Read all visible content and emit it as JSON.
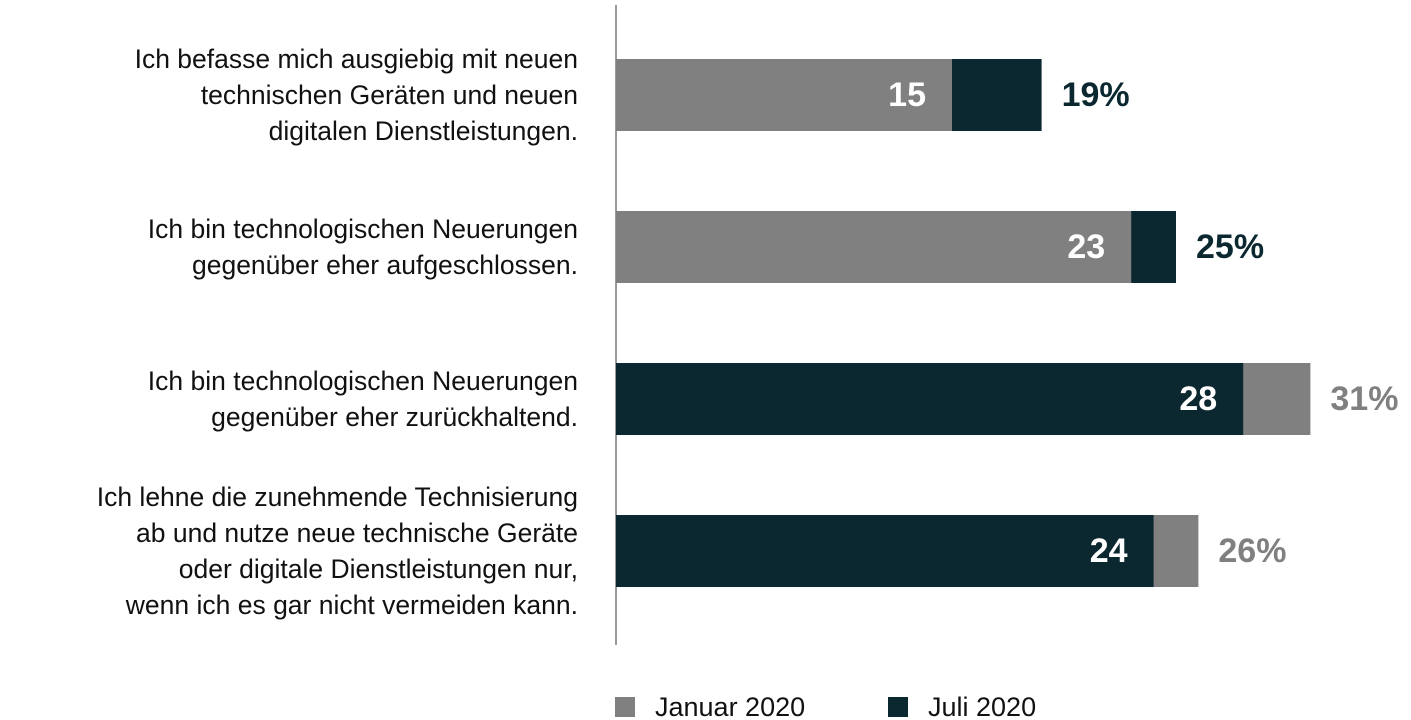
{
  "chart_data": {
    "type": "bar",
    "categories": [
      "Ich befasse mich ausgiebig mit neuen\ntechnischen Geräten und neuen\ndigitalen Dienstleistungen.",
      "Ich bin technologischen Neuerungen\ngegenüber eher aufgeschlossen.",
      "Ich bin technologischen Neuerungen\ngegenüber eher zurückhaltend.",
      "Ich lehne die zunehmende Technisierung\nab und nutze neue technische Geräte\noder digitale Dienstleistungen nur,\nwenn ich es gar nicht vermeiden kann."
    ],
    "series": [
      {
        "name": "Januar 2020",
        "color": "#808080",
        "values": [
          15,
          23,
          31,
          26
        ],
        "value_labels": [
          "15",
          "23",
          "31%",
          "26%"
        ]
      },
      {
        "name": "Juli 2020",
        "color": "#0b2830",
        "values": [
          19,
          25,
          28,
          24
        ],
        "value_labels": [
          "19%",
          "25%",
          "28",
          "24"
        ]
      }
    ]
  }
}
